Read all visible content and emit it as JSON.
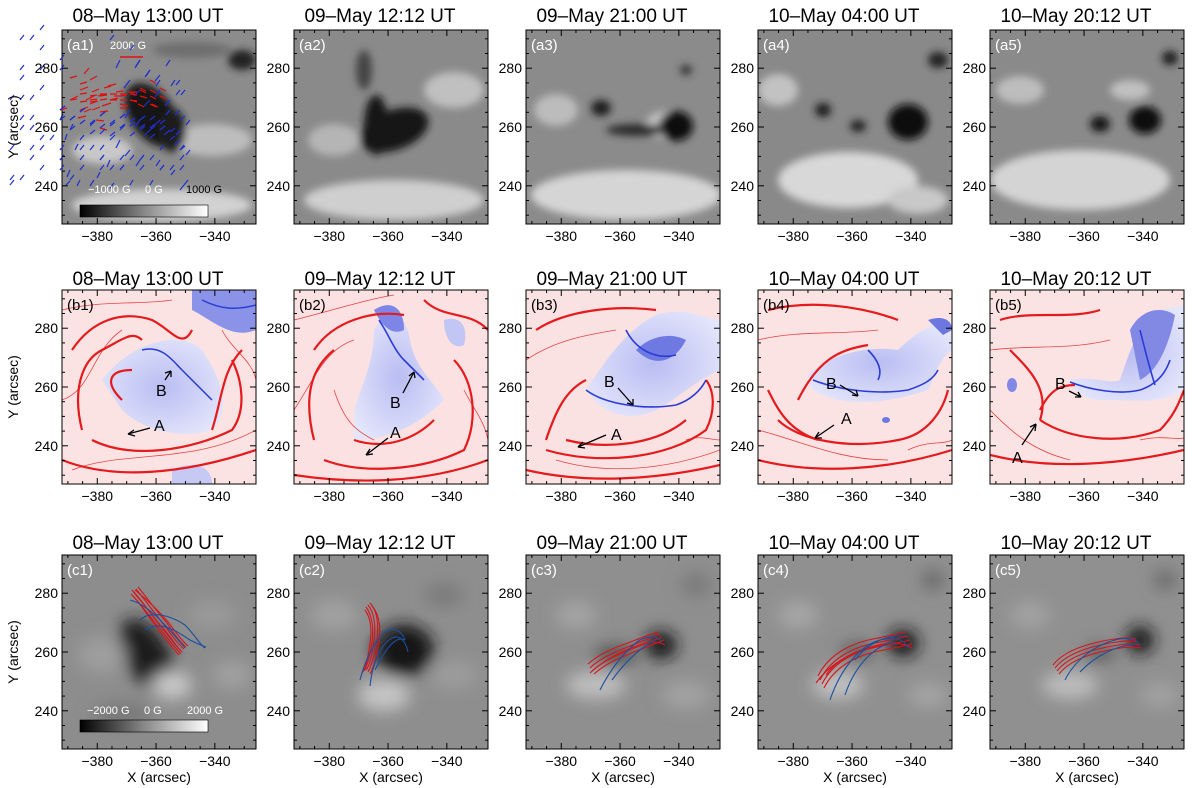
{
  "figure": {
    "row_a": {
      "panels": [
        {
          "label": "(a1)",
          "title": "08–May  13:00 UT"
        },
        {
          "label": "(a2)",
          "title": "09–May  12:12 UT"
        },
        {
          "label": "(a3)",
          "title": "09–May  21:00 UT"
        },
        {
          "label": "(a4)",
          "title": "10–May  04:00 UT"
        },
        {
          "label": "(a5)",
          "title": "10–May  20:12 UT"
        }
      ],
      "vector_scale": "2000 G",
      "colorbar": {
        "min": "−1000 G",
        "mid": "0 G",
        "max": "1000 G"
      }
    },
    "row_b": {
      "panels": [
        {
          "label": "(b1)",
          "title": "08–May  13:00 UT"
        },
        {
          "label": "(b2)",
          "title": "09–May  12:12 UT"
        },
        {
          "label": "(b3)",
          "title": "09–May  21:00 UT"
        },
        {
          "label": "(b4)",
          "title": "10–May  04:00 UT"
        },
        {
          "label": "(b5)",
          "title": "10–May  20:12 UT"
        }
      ],
      "annotation_a": "A",
      "annotation_b": "B"
    },
    "row_c": {
      "panels": [
        {
          "label": "(c1)",
          "title": "08–May  13:00 UT"
        },
        {
          "label": "(c2)",
          "title": "09–May  12:12 UT"
        },
        {
          "label": "(c3)",
          "title": "09–May  21:00 UT"
        },
        {
          "label": "(c4)",
          "title": "10–May  04:00 UT"
        },
        {
          "label": "(c5)",
          "title": "10–May  20:12 UT"
        }
      ],
      "colorbar": {
        "min": "−2000 G",
        "mid": "0 G",
        "max": "2000 G"
      }
    },
    "x_ticks": [
      "−380",
      "−360",
      "−340"
    ],
    "y_ticks": [
      "280",
      "260",
      "240"
    ],
    "xlabel": "X (arcsec)",
    "ylabel": "Y (arcsec)"
  },
  "colors": {
    "negative": "#111111",
    "positive": "#f2f2f2",
    "qsl_red": "#e41a1c",
    "qsl_blue": "#2b3bd6",
    "vector_blue": "#1f2fd0",
    "vector_red": "#e01010",
    "rope_red": "#d7141b",
    "line_blue": "#1a4fa0"
  }
}
